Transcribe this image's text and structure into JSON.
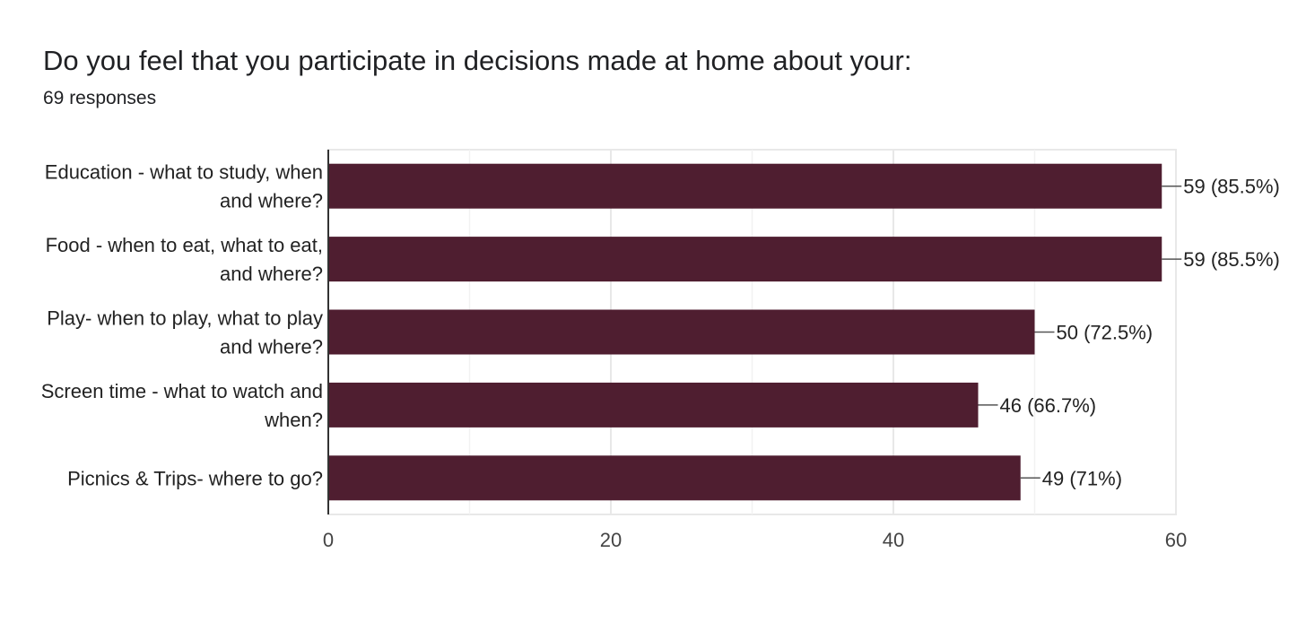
{
  "header": {
    "title": "Do you feel that you participate in decisions made at home about your:",
    "responses": "69 responses"
  },
  "colors": {
    "bar": "#4f1e30",
    "grid": "#e8e8e8",
    "axis": "#333333",
    "leader": "#555555"
  },
  "chart_data": {
    "type": "bar",
    "orientation": "horizontal",
    "categories": [
      [
        "Education - what to study, when",
        "and where?"
      ],
      [
        "Food - when to eat, what to eat,",
        "and where?"
      ],
      [
        "Play- when to play, what to play",
        "and where?"
      ],
      [
        "Screen time - what to watch and",
        "when?"
      ],
      [
        "Picnics & Trips- where to go?"
      ]
    ],
    "values": [
      59,
      59,
      50,
      46,
      49
    ],
    "value_labels": [
      "59 (85.5%)",
      "59 (85.5%)",
      "50 (72.5%)",
      "46 (66.7%)",
      "49 (71%)"
    ],
    "xlim": [
      0,
      60
    ],
    "xticks": [
      0,
      20,
      40,
      60
    ],
    "xtick_labels": [
      "0",
      "20",
      "40",
      "60"
    ],
    "minor_grid": [
      10,
      30,
      50
    ],
    "grid": true,
    "legend": "none"
  }
}
